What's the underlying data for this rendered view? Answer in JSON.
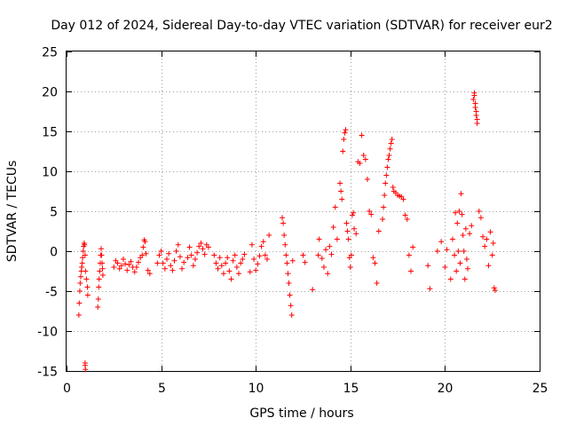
{
  "chart_data": {
    "type": "scatter",
    "title": "Day 012 of 2024, Sidereal Day-to-day VTEC variation (SDTVAR) for receiver eur2",
    "xlabel": "GPS time / hours",
    "ylabel": "SDTVAR / TECUs",
    "xlim": [
      0,
      25
    ],
    "ylim": [
      -15,
      25
    ],
    "x_ticks": [
      0,
      5,
      10,
      15,
      20,
      25
    ],
    "y_ticks": [
      -15,
      -10,
      -5,
      0,
      5,
      10,
      15,
      20,
      25
    ],
    "grid": true,
    "marker": "+",
    "color": "#ff0000",
    "series": [
      {
        "name": "SDTVAR",
        "x": [
          0.65,
          0.67,
          0.7,
          0.72,
          0.75,
          0.78,
          0.8,
          0.83,
          0.85,
          0.88,
          0.9,
          0.93,
          0.95,
          0.98,
          1.0,
          1.05,
          1.1,
          1.12,
          0.98,
          1.0,
          1.65,
          1.68,
          1.7,
          1.72,
          1.75,
          1.78,
          1.8,
          1.83,
          1.85,
          1.88,
          1.9,
          1.92,
          2.5,
          2.6,
          2.7,
          2.8,
          2.9,
          3.0,
          3.1,
          3.2,
          3.3,
          3.4,
          3.5,
          3.6,
          3.7,
          3.8,
          3.9,
          4.0,
          4.05,
          4.1,
          4.15,
          4.2,
          4.3,
          4.4,
          4.8,
          4.9,
          5.0,
          5.1,
          5.2,
          5.3,
          5.4,
          5.5,
          5.6,
          5.7,
          5.8,
          5.9,
          6.0,
          6.1,
          6.2,
          6.4,
          6.5,
          6.6,
          6.7,
          6.8,
          6.9,
          7.0,
          7.1,
          7.2,
          7.3,
          7.4,
          7.5,
          7.8,
          7.9,
          8.0,
          8.1,
          8.2,
          8.3,
          8.4,
          8.5,
          8.6,
          8.7,
          8.8,
          8.9,
          9.0,
          9.1,
          9.2,
          9.3,
          9.4,
          9.7,
          9.8,
          9.9,
          10.0,
          10.1,
          10.2,
          10.3,
          10.4,
          10.5,
          10.6,
          10.7,
          11.4,
          11.45,
          11.5,
          11.55,
          11.6,
          11.65,
          11.7,
          11.75,
          11.8,
          11.85,
          11.9,
          11.95,
          12.5,
          12.6,
          13.0,
          13.3,
          13.35,
          13.5,
          13.6,
          13.7,
          13.8,
          13.9,
          14.0,
          14.1,
          14.2,
          14.3,
          14.45,
          14.5,
          14.55,
          14.6,
          14.65,
          14.7,
          14.75,
          14.8,
          14.85,
          14.9,
          14.95,
          15.0,
          15.05,
          15.1,
          15.15,
          15.2,
          15.3,
          15.4,
          15.5,
          15.6,
          15.7,
          15.8,
          15.9,
          16.0,
          16.1,
          16.2,
          16.3,
          16.4,
          16.5,
          16.7,
          16.75,
          16.8,
          16.85,
          16.9,
          16.95,
          17.0,
          17.05,
          17.1,
          17.15,
          17.2,
          17.25,
          17.3,
          17.4,
          17.5,
          17.6,
          17.7,
          17.8,
          17.9,
          18.0,
          18.1,
          18.2,
          18.3,
          19.1,
          19.2,
          19.6,
          19.8,
          20.0,
          20.1,
          20.3,
          20.4,
          20.5,
          20.55,
          20.6,
          20.65,
          20.7,
          20.75,
          20.8,
          20.85,
          20.9,
          20.95,
          21.0,
          21.05,
          21.1,
          21.15,
          21.2,
          21.3,
          21.4,
          21.5,
          21.55,
          21.6,
          21.65,
          21.7,
          21.8,
          21.9,
          22.0,
          22.1,
          22.2,
          22.3,
          22.4,
          22.5,
          22.55,
          22.6,
          22.65,
          0.98,
          21.55,
          21.6,
          21.65,
          21.7
        ],
        "y": [
          -8.0,
          -6.5,
          -5.0,
          -4.0,
          -3.2,
          -2.5,
          -2.0,
          -1.5,
          -0.8,
          0.0,
          0.6,
          1.0,
          0.8,
          -0.5,
          -2.5,
          -3.5,
          -4.5,
          -5.5,
          -14.3,
          -14.8,
          -7.0,
          -6.0,
          -4.5,
          -3.5,
          -2.5,
          -1.5,
          -0.5,
          0.3,
          -0.5,
          -1.5,
          -2.2,
          -3.0,
          -2.0,
          -1.2,
          -1.5,
          -2.2,
          -1.8,
          -1.0,
          -1.6,
          -2.4,
          -1.7,
          -1.3,
          -2.0,
          -2.6,
          -2.0,
          -1.4,
          -0.8,
          -0.5,
          0.5,
          1.4,
          1.2,
          -0.3,
          -2.4,
          -2.8,
          -1.5,
          -0.5,
          0.0,
          -1.5,
          -2.2,
          -1.0,
          -0.3,
          -1.8,
          -2.4,
          -1.2,
          0.0,
          0.8,
          -0.7,
          -2.2,
          -1.4,
          -0.8,
          0.5,
          -0.5,
          -1.8,
          -1.0,
          -0.2,
          0.6,
          1.0,
          0.3,
          -0.4,
          0.8,
          0.5,
          -0.5,
          -1.5,
          -2.2,
          -0.8,
          -1.8,
          -2.8,
          -1.5,
          -0.8,
          -2.5,
          -3.5,
          -1.2,
          -0.5,
          -2.0,
          -2.8,
          -1.5,
          -1.0,
          -0.4,
          -2.6,
          0.8,
          -1.0,
          -2.4,
          -1.6,
          -0.6,
          0.6,
          1.2,
          -0.5,
          -1.0,
          2.0,
          4.2,
          3.5,
          2.0,
          0.8,
          -0.5,
          -1.5,
          -2.8,
          -4.0,
          -5.5,
          -6.8,
          -8.0,
          -1.2,
          -0.5,
          -1.4,
          -4.8,
          -0.5,
          1.5,
          -0.9,
          -2.0,
          0.2,
          -2.8,
          0.6,
          -0.4,
          3.0,
          5.5,
          1.5,
          8.5,
          7.5,
          6.5,
          12.5,
          14.0,
          14.8,
          15.2,
          3.5,
          2.5,
          1.5,
          -0.8,
          -2.0,
          -0.5,
          4.5,
          4.8,
          2.8,
          2.2,
          11.2,
          11.0,
          14.5,
          12.0,
          11.5,
          9.0,
          5.0,
          4.6,
          -0.8,
          -1.5,
          -4.0,
          2.5,
          4.0,
          5.5,
          7.0,
          8.5,
          9.5,
          10.5,
          11.5,
          12.0,
          12.8,
          13.5,
          14.0,
          8.0,
          7.5,
          7.3,
          7.0,
          6.9,
          6.8,
          6.5,
          4.5,
          4.0,
          -0.5,
          -2.5,
          0.5,
          -1.8,
          -4.7,
          0.0,
          1.2,
          -2.0,
          0.2,
          -3.5,
          1.5,
          -0.5,
          4.8,
          -2.5,
          3.5,
          0.0,
          5.0,
          -1.5,
          7.2,
          4.6,
          2.0,
          0.0,
          -3.5,
          2.8,
          -1.0,
          -2.2,
          2.2,
          3.2,
          19.0,
          19.5,
          18.5,
          17.0,
          16.5,
          5.0,
          4.2,
          1.8,
          0.6,
          1.5,
          -1.8,
          2.4,
          -0.5,
          1.0,
          -4.6,
          -4.9,
          -14.0,
          19.8,
          18.0,
          17.5,
          16.0
        ]
      }
    ]
  }
}
